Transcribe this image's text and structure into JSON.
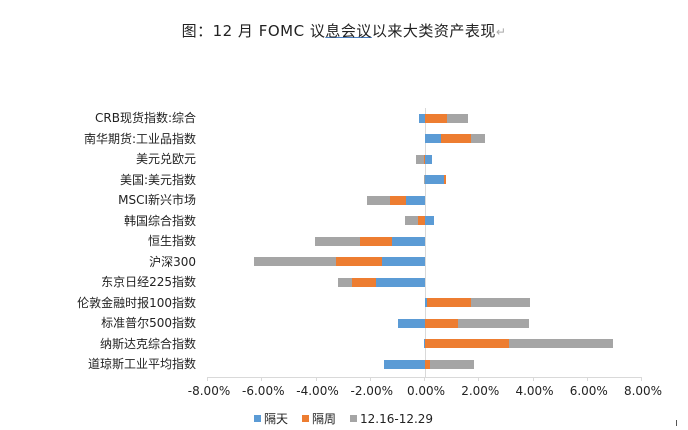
{
  "title": {
    "prefix": "图：12 月 FOMC 议",
    "underlined": "息会议",
    "suffix": "以来大类资产表现",
    "return_mark": "↵"
  },
  "colors": {
    "blue": "#5b9bd5",
    "orange": "#ed7d31",
    "gray": "#a5a5a5",
    "axis": "#d9d9d9"
  },
  "legend": [
    {
      "label": "隔天",
      "color": "#5b9bd5"
    },
    {
      "label": "隔周",
      "color": "#ed7d31"
    },
    {
      "label": "12.16-12.29",
      "color": "#a5a5a5"
    }
  ],
  "x_ticks": [
    "-8.00%",
    "-6.00%",
    "-4.00%",
    "-2.00%",
    "0.00%",
    "2.00%",
    "4.00%",
    "6.00%",
    "8.00%"
  ],
  "chart_data": {
    "type": "bar",
    "orientation": "horizontal",
    "stacked": true,
    "title": "图：12 月 FOMC 议息会议以来大类资产表现",
    "xlabel": "",
    "ylabel": "",
    "xlim": [
      -0.08,
      0.08
    ],
    "x_tick_format": "percent",
    "grid": false,
    "legend_position": "bottom",
    "categories": [
      "CRB现货指数:综合",
      "南华期货:工业品指数",
      "美元兑欧元",
      "美国:美元指数",
      "MSCI新兴市场",
      "韩国综合指数",
      "恒生指数",
      "沪深300",
      "东京日经225指数",
      "伦敦金融时报100指数",
      "标准普尔500指数",
      "纳斯达克综合指数",
      "道琼斯工业平均指数"
    ],
    "series": [
      {
        "name": "隔天",
        "values": [
          -0.0022,
          0.006,
          0.0025,
          0.007,
          -0.007,
          0.0035,
          -0.012,
          -0.016,
          -0.018,
          0.0008,
          -0.01,
          -0.0005,
          -0.015
        ]
      },
      {
        "name": "隔周",
        "values": [
          0.008,
          0.011,
          -0.0005,
          0.0008,
          -0.006,
          -0.0025,
          -0.012,
          -0.017,
          -0.009,
          0.016,
          0.012,
          0.031,
          0.002
        ]
      },
      {
        "name": "12.16-12.29",
        "values": [
          0.008,
          0.005,
          -0.003,
          -0.0005,
          -0.0085,
          -0.005,
          -0.0165,
          -0.03,
          -0.005,
          0.022,
          0.0265,
          0.0385,
          0.016
        ]
      }
    ]
  }
}
